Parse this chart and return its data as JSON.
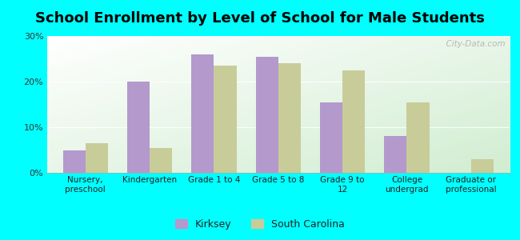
{
  "title": "School Enrollment by Level of School for Male Students",
  "categories": [
    "Nursery,\npreschool",
    "Kindergarten",
    "Grade 1 to 4",
    "Grade 5 to 8",
    "Grade 9 to\n12",
    "College\nundergrad",
    "Graduate or\nprofessional"
  ],
  "kirksey": [
    5.0,
    20.0,
    26.0,
    25.5,
    15.5,
    8.0,
    0.0
  ],
  "south_carolina": [
    6.5,
    5.5,
    23.5,
    24.0,
    22.5,
    15.5,
    3.0
  ],
  "kirksey_color": "#b399cc",
  "sc_color": "#c8cc99",
  "ylim": [
    0,
    30
  ],
  "yticks": [
    0,
    10,
    20,
    30
  ],
  "ytick_labels": [
    "0%",
    "10%",
    "20%",
    "30%"
  ],
  "bg_outer": "#00ffff",
  "legend_kirksey": "Kirksey",
  "legend_sc": "South Carolina",
  "title_fontsize": 13,
  "watermark": "  City-Data.com"
}
